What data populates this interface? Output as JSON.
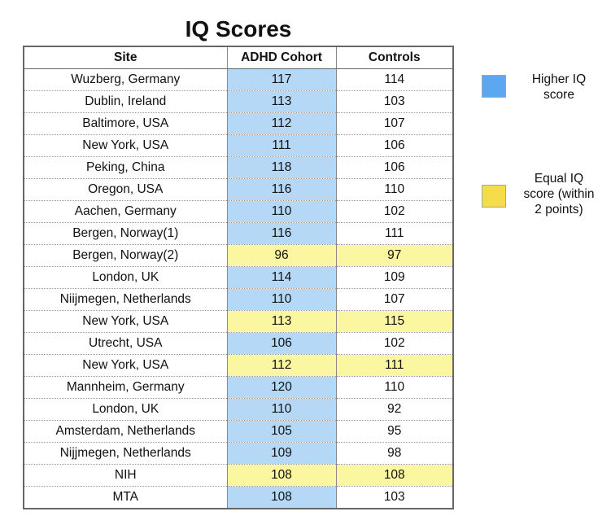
{
  "chart_data": {
    "type": "table",
    "title": "IQ Scores",
    "columns": [
      "Site",
      "ADHD Cohort",
      "Controls"
    ],
    "rows": [
      {
        "site": "Wuzberg, Germany",
        "adhd": 117,
        "controls": 114,
        "category": "higher"
      },
      {
        "site": "Dublin, Ireland",
        "adhd": 113,
        "controls": 103,
        "category": "higher"
      },
      {
        "site": "Baltimore, USA",
        "adhd": 112,
        "controls": 107,
        "category": "higher"
      },
      {
        "site": "New York, USA",
        "adhd": 111,
        "controls": 106,
        "category": "higher"
      },
      {
        "site": "Peking, China",
        "adhd": 118,
        "controls": 106,
        "category": "higher"
      },
      {
        "site": "Oregon, USA",
        "adhd": 116,
        "controls": 110,
        "category": "higher"
      },
      {
        "site": "Aachen, Germany",
        "adhd": 110,
        "controls": 102,
        "category": "higher"
      },
      {
        "site": "Bergen, Norway(1)",
        "adhd": 116,
        "controls": 111,
        "category": "higher"
      },
      {
        "site": "Bergen, Norway(2)",
        "adhd": 96,
        "controls": 97,
        "category": "equal"
      },
      {
        "site": "London, UK",
        "adhd": 114,
        "controls": 109,
        "category": "higher"
      },
      {
        "site": "Niijmegen, Netherlands",
        "adhd": 110,
        "controls": 107,
        "category": "higher"
      },
      {
        "site": "New York, USA",
        "adhd": 113,
        "controls": 115,
        "category": "equal"
      },
      {
        "site": "Utrecht, USA",
        "adhd": 106,
        "controls": 102,
        "category": "higher"
      },
      {
        "site": "New York, USA",
        "adhd": 112,
        "controls": 111,
        "category": "equal"
      },
      {
        "site": "Mannheim, Germany",
        "adhd": 120,
        "controls": 110,
        "category": "higher"
      },
      {
        "site": "London, UK",
        "adhd": 110,
        "controls": 92,
        "category": "higher"
      },
      {
        "site": "Amsterdam, Netherlands",
        "adhd": 105,
        "controls": 95,
        "category": "higher"
      },
      {
        "site": "Nijjmegen, Netherlands",
        "adhd": 109,
        "controls": 98,
        "category": "higher"
      },
      {
        "site": "NIH",
        "adhd": 108,
        "controls": 108,
        "category": "equal"
      },
      {
        "site": "MTA",
        "adhd": 108,
        "controls": 103,
        "category": "higher"
      }
    ],
    "legend": [
      {
        "key": "higher",
        "label": "Higher IQ\nscore",
        "color": "#5ba8f0"
      },
      {
        "key": "equal",
        "label": "Equal IQ\nscore (within\n2 points)",
        "color": "#f5dc4a"
      }
    ],
    "cell_colors": {
      "higher": "#b6d8f7",
      "equal": "#fbf7a0"
    }
  }
}
